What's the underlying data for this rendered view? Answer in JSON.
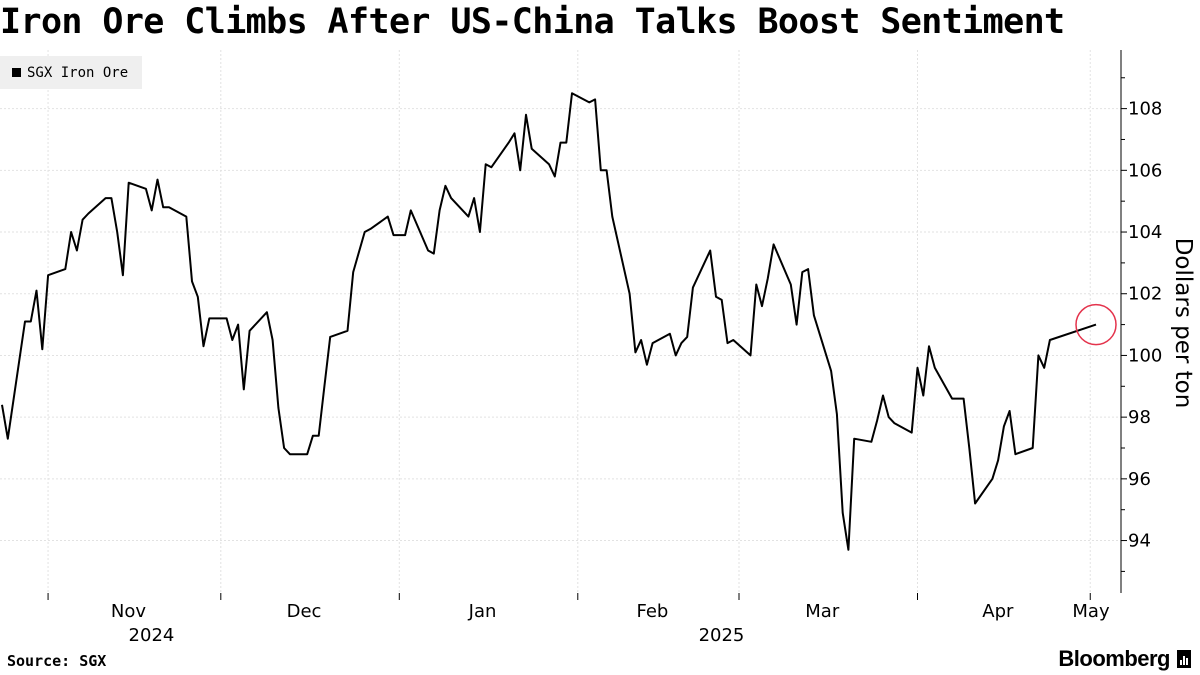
{
  "chart_data": {
    "type": "line",
    "title": "Iron Ore Climbs After US-China Talks Boost Sentiment",
    "ylabel": "Dollars per ton",
    "xlabel": "",
    "ylim": [
      92.3,
      109.9
    ],
    "y_ticks": [
      94,
      96,
      98,
      100,
      102,
      104,
      106,
      108
    ],
    "grid": true,
    "legend_position": "top-left",
    "x_ticks": [
      {
        "label": "Nov",
        "date": "2024-11-01"
      },
      {
        "label": "Dec",
        "date": "2024-12-01"
      },
      {
        "label": "Jan",
        "date": "2025-01-01"
      },
      {
        "label": "Feb",
        "date": "2025-02-01"
      },
      {
        "label": "Mar",
        "date": "2025-03-01"
      },
      {
        "label": "Apr",
        "date": "2025-04-01"
      },
      {
        "label": "May",
        "date": "2025-05-01"
      }
    ],
    "year_labels": [
      {
        "label": "2024",
        "date": "2024-11-20"
      },
      {
        "label": "2025",
        "date": "2025-02-27"
      }
    ],
    "highlight": {
      "date": "2025-05-02",
      "color": "#e4334c"
    },
    "series": [
      {
        "name": "SGX Iron Ore",
        "color": "#000000",
        "points": [
          [
            "2024-10-24",
            98.4
          ],
          [
            "2024-10-25",
            97.3
          ],
          [
            "2024-10-28",
            101.1
          ],
          [
            "2024-10-29",
            101.1
          ],
          [
            "2024-10-30",
            102.1
          ],
          [
            "2024-10-31",
            100.2
          ],
          [
            "2024-11-01",
            102.6
          ],
          [
            "2024-11-04",
            102.8
          ],
          [
            "2024-11-05",
            104.0
          ],
          [
            "2024-11-06",
            103.4
          ],
          [
            "2024-11-07",
            104.4
          ],
          [
            "2024-11-08",
            104.6
          ],
          [
            "2024-11-11",
            105.1
          ],
          [
            "2024-11-12",
            105.1
          ],
          [
            "2024-11-13",
            104.0
          ],
          [
            "2024-11-14",
            102.6
          ],
          [
            "2024-11-15",
            105.6
          ],
          [
            "2024-11-18",
            105.4
          ],
          [
            "2024-11-19",
            104.7
          ],
          [
            "2024-11-20",
            105.7
          ],
          [
            "2024-11-21",
            104.8
          ],
          [
            "2024-11-22",
            104.8
          ],
          [
            "2024-11-25",
            104.5
          ],
          [
            "2024-11-26",
            102.4
          ],
          [
            "2024-11-27",
            101.9
          ],
          [
            "2024-11-28",
            100.3
          ],
          [
            "2024-11-29",
            101.2
          ],
          [
            "2024-12-02",
            101.2
          ],
          [
            "2024-12-03",
            100.5
          ],
          [
            "2024-12-04",
            101.0
          ],
          [
            "2024-12-05",
            98.9
          ],
          [
            "2024-12-06",
            100.8
          ],
          [
            "2024-12-09",
            101.4
          ],
          [
            "2024-12-10",
            100.5
          ],
          [
            "2024-12-11",
            98.3
          ],
          [
            "2024-12-12",
            97.0
          ],
          [
            "2024-12-13",
            96.8
          ],
          [
            "2024-12-16",
            96.8
          ],
          [
            "2024-12-17",
            97.4
          ],
          [
            "2024-12-18",
            97.4
          ],
          [
            "2024-12-19",
            99.0
          ],
          [
            "2024-12-20",
            100.6
          ],
          [
            "2024-12-23",
            100.8
          ],
          [
            "2024-12-24",
            102.7
          ],
          [
            "2024-12-26",
            104.0
          ],
          [
            "2024-12-27",
            104.1
          ],
          [
            "2024-12-30",
            104.5
          ],
          [
            "2024-12-31",
            103.9
          ],
          [
            "2025-01-02",
            103.9
          ],
          [
            "2025-01-03",
            104.7
          ],
          [
            "2025-01-06",
            103.4
          ],
          [
            "2025-01-07",
            103.3
          ],
          [
            "2025-01-08",
            104.7
          ],
          [
            "2025-01-09",
            105.5
          ],
          [
            "2025-01-10",
            105.1
          ],
          [
            "2025-01-13",
            104.5
          ],
          [
            "2025-01-14",
            105.1
          ],
          [
            "2025-01-15",
            104.0
          ],
          [
            "2025-01-16",
            106.2
          ],
          [
            "2025-01-17",
            106.1
          ],
          [
            "2025-01-20",
            106.9
          ],
          [
            "2025-01-21",
            107.2
          ],
          [
            "2025-01-22",
            106.0
          ],
          [
            "2025-01-23",
            107.8
          ],
          [
            "2025-01-24",
            106.7
          ],
          [
            "2025-01-27",
            106.2
          ],
          [
            "2025-01-28",
            105.8
          ],
          [
            "2025-01-29",
            106.9
          ],
          [
            "2025-01-30",
            106.9
          ],
          [
            "2025-01-31",
            108.5
          ],
          [
            "2025-02-03",
            108.2
          ],
          [
            "2025-02-04",
            108.3
          ],
          [
            "2025-02-05",
            106.0
          ],
          [
            "2025-02-06",
            106.0
          ],
          [
            "2025-02-07",
            104.5
          ],
          [
            "2025-02-10",
            102.0
          ],
          [
            "2025-02-11",
            100.1
          ],
          [
            "2025-02-12",
            100.5
          ],
          [
            "2025-02-13",
            99.7
          ],
          [
            "2025-02-14",
            100.4
          ],
          [
            "2025-02-17",
            100.7
          ],
          [
            "2025-02-18",
            100.0
          ],
          [
            "2025-02-19",
            100.4
          ],
          [
            "2025-02-20",
            100.6
          ],
          [
            "2025-02-21",
            102.2
          ],
          [
            "2025-02-24",
            103.4
          ],
          [
            "2025-02-25",
            101.9
          ],
          [
            "2025-02-26",
            101.8
          ],
          [
            "2025-02-27",
            100.4
          ],
          [
            "2025-02-28",
            100.5
          ],
          [
            "2025-03-03",
            100.0
          ],
          [
            "2025-03-04",
            102.3
          ],
          [
            "2025-03-05",
            101.6
          ],
          [
            "2025-03-06",
            102.5
          ],
          [
            "2025-03-07",
            103.6
          ],
          [
            "2025-03-10",
            102.3
          ],
          [
            "2025-03-11",
            101.0
          ],
          [
            "2025-03-12",
            102.7
          ],
          [
            "2025-03-13",
            102.8
          ],
          [
            "2025-03-14",
            101.3
          ],
          [
            "2025-03-17",
            99.5
          ],
          [
            "2025-03-18",
            98.1
          ],
          [
            "2025-03-19",
            94.9
          ],
          [
            "2025-03-20",
            93.7
          ],
          [
            "2025-03-21",
            97.3
          ],
          [
            "2025-03-24",
            97.2
          ],
          [
            "2025-03-25",
            97.9
          ],
          [
            "2025-03-26",
            98.7
          ],
          [
            "2025-03-27",
            98.0
          ],
          [
            "2025-03-28",
            97.8
          ],
          [
            "2025-03-31",
            97.5
          ],
          [
            "2025-04-01",
            99.6
          ],
          [
            "2025-04-02",
            98.7
          ],
          [
            "2025-04-03",
            100.3
          ],
          [
            "2025-04-04",
            99.6
          ],
          [
            "2025-04-07",
            98.6
          ],
          [
            "2025-04-08",
            98.6
          ],
          [
            "2025-04-09",
            98.6
          ],
          [
            "2025-04-10",
            97.0
          ],
          [
            "2025-04-11",
            95.2
          ],
          [
            "2025-04-14",
            96.0
          ],
          [
            "2025-04-15",
            96.6
          ],
          [
            "2025-04-16",
            97.7
          ],
          [
            "2025-04-17",
            98.2
          ],
          [
            "2025-04-18",
            96.8
          ],
          [
            "2025-04-21",
            97.0
          ],
          [
            "2025-04-22",
            100.0
          ],
          [
            "2025-04-23",
            99.6
          ],
          [
            "2025-04-24",
            100.5
          ],
          [
            "2025-05-02",
            101.0
          ]
        ]
      }
    ]
  },
  "legend": {
    "label": "SGX Iron Ore"
  },
  "footer": {
    "source": "Source: SGX",
    "brand": "Bloomberg"
  }
}
